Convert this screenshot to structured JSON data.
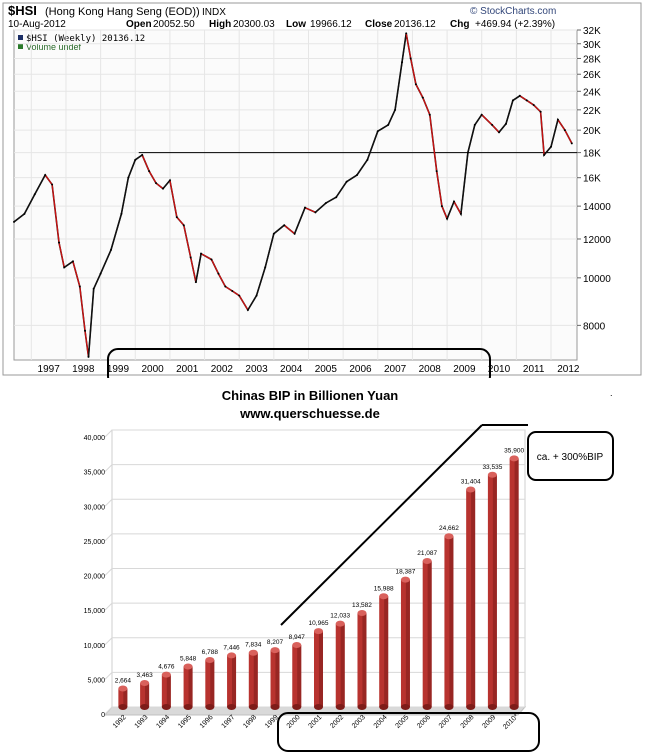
{
  "chart_data": [
    {
      "type": "line",
      "header": {
        "symbol": "$HSI",
        "name": "(Hong Kong Hang Seng (EOD))",
        "exchange": "INDX",
        "date": "10-Aug-2012",
        "open_label": "Open",
        "open": "20052.50",
        "high_label": "High",
        "high": "20300.03",
        "low_label": "Low",
        "low": "19966.12",
        "close_label": "Close",
        "close": "20136.12",
        "chg_label": "Chg",
        "chg": "+469.94 (+2.39%)",
        "legend_price": "$HSI (Weekly) 20136.12",
        "legend_volume": "Volume undef",
        "brand": "© StockCharts.com"
      },
      "xlabel": "",
      "ylabel": "",
      "scale": "log",
      "ylim": [
        6800,
        32000
      ],
      "x_ticks": [
        "1997",
        "1998",
        "1999",
        "2000",
        "2001",
        "2002",
        "2003",
        "2004",
        "2005",
        "2006",
        "2007",
        "2008",
        "2009",
        "2010",
        "2011",
        "2012"
      ],
      "y_ticks": [
        "32K",
        "30K",
        "28K",
        "26K",
        "24K",
        "22K",
        "20K",
        "18K",
        "16K",
        "14000",
        "12000",
        "10000",
        "8000"
      ],
      "y_tick_values": [
        32000,
        30000,
        28000,
        26000,
        24000,
        22000,
        20000,
        18000,
        16000,
        14000,
        12000,
        10000,
        8000
      ],
      "reference_line": 18000,
      "series": [
        {
          "name": "$HSI",
          "x": [
            1996.5,
            1996.8,
            1997.1,
            1997.4,
            1997.6,
            1997.8,
            1997.95,
            1998.2,
            1998.4,
            1998.55,
            1998.65,
            1998.8,
            1999.0,
            1999.3,
            1999.6,
            1999.8,
            2000.0,
            2000.2,
            2000.4,
            2000.6,
            2000.8,
            2001.0,
            2001.2,
            2001.4,
            2001.6,
            2001.75,
            2001.9,
            2002.2,
            2002.4,
            2002.6,
            2002.8,
            2003.0,
            2003.25,
            2003.5,
            2003.75,
            2004.0,
            2004.3,
            2004.6,
            2004.9,
            2005.2,
            2005.5,
            2005.8,
            2006.1,
            2006.4,
            2006.7,
            2007.0,
            2007.3,
            2007.5,
            2007.7,
            2007.82,
            2007.95,
            2008.1,
            2008.3,
            2008.5,
            2008.7,
            2008.85,
            2009.0,
            2009.2,
            2009.4,
            2009.6,
            2009.8,
            2010.0,
            2010.3,
            2010.5,
            2010.7,
            2010.9,
            2011.1,
            2011.3,
            2011.5,
            2011.7,
            2011.8,
            2012.0,
            2012.2,
            2012.4,
            2012.6
          ],
          "values": [
            13000,
            13500,
            14800,
            16200,
            15500,
            11800,
            10500,
            10800,
            9600,
            7800,
            6900,
            9500,
            10200,
            11400,
            13500,
            16000,
            17400,
            17800,
            16500,
            15600,
            15200,
            15800,
            13300,
            12800,
            11000,
            9800,
            11200,
            10900,
            10200,
            9600,
            9400,
            9200,
            8600,
            9200,
            10500,
            12300,
            12800,
            12300,
            13900,
            13600,
            14200,
            14600,
            15700,
            16200,
            17400,
            19900,
            20500,
            22000,
            27500,
            31500,
            28000,
            24800,
            23300,
            21500,
            16500,
            14000,
            13200,
            14300,
            13500,
            18000,
            20500,
            21500,
            20500,
            19800,
            20600,
            23000,
            23500,
            23000,
            22500,
            21800,
            17800,
            18500,
            21000,
            20000,
            18800
          ]
        }
      ]
    },
    {
      "type": "bar",
      "title": "Chinas BIP in Billionen Yuan",
      "subtitle": "www.querschuesse.de",
      "xlabel": "",
      "ylabel": "",
      "ylim": [
        0,
        40000
      ],
      "y_ticks": [
        "0",
        "5,000",
        "10,000",
        "15,000",
        "20,000",
        "25,000",
        "30,000",
        "35,000",
        "40,000"
      ],
      "y_tick_values": [
        0,
        5000,
        10000,
        15000,
        20000,
        25000,
        30000,
        35000,
        40000
      ],
      "categories": [
        "1992",
        "1993",
        "1994",
        "1995",
        "1996",
        "1997",
        "1998",
        "1999",
        "2000",
        "2001",
        "2002",
        "2003",
        "2004",
        "2005",
        "2006",
        "2007",
        "2008",
        "2009",
        "2010*"
      ],
      "values": [
        2664,
        3463,
        4676,
        5848,
        6788,
        7446,
        7834,
        8207,
        8947,
        10965,
        12033,
        13582,
        15988,
        18387,
        21087,
        24662,
        31404,
        33535,
        35900
      ],
      "value_labels": [
        "2,664",
        "3,463",
        "4,676",
        "5,848",
        "6,788",
        "7,446",
        "7,834",
        "8,207",
        "8,947",
        "10,965",
        "12,033",
        "13,582",
        "15,988",
        "18,387",
        "21,087",
        "24,662",
        "31,404",
        "33,535",
        "35,900"
      ],
      "annotation": "ca. + 300%BIP",
      "colors": {
        "bar": "#b8332f",
        "bar_light": "#d9615c",
        "bar_dark": "#7e1c19"
      }
    }
  ]
}
